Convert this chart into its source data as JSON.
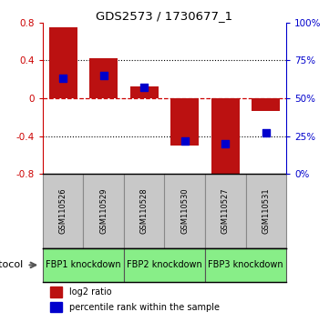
{
  "title": "GDS2573 / 1730677_1",
  "samples": [
    "GSM110526",
    "GSM110529",
    "GSM110528",
    "GSM110530",
    "GSM110527",
    "GSM110531"
  ],
  "log2_ratio": [
    0.75,
    0.42,
    0.13,
    -0.5,
    -0.85,
    -0.13
  ],
  "percentile_rank": [
    63,
    65,
    57,
    22,
    20,
    27
  ],
  "groups": [
    {
      "label": "FBP1 knockdown",
      "start": 0,
      "end": 2
    },
    {
      "label": "FBP2 knockdown",
      "start": 2,
      "end": 4
    },
    {
      "label": "FBP3 knockdown",
      "start": 4,
      "end": 6
    }
  ],
  "ylim_left": [
    -0.8,
    0.8
  ],
  "ylim_right": [
    0,
    100
  ],
  "yticks_left": [
    -0.8,
    -0.4,
    0,
    0.4,
    0.8
  ],
  "yticks_right": [
    0,
    25,
    50,
    75,
    100
  ],
  "bar_color": "#BB1111",
  "square_color": "#0000CC",
  "background_color": "#FFFFFF",
  "plot_bg_color": "#FFFFFF",
  "grid_color": "#000000",
  "zero_line_color": "#CC0000",
  "sample_box_color": "#C8C8C8",
  "group_box_color": "#88EE88",
  "legend_red_label": "log2 ratio",
  "legend_blue_label": "percentile rank within the sample",
  "bar_width": 0.7
}
